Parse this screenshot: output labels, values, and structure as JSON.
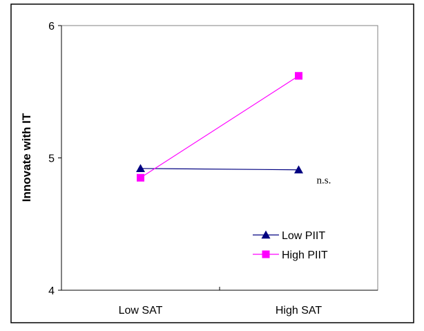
{
  "chart_data": {
    "type": "line",
    "title": "",
    "xlabel": "",
    "ylabel": "Innovate with IT",
    "categories": [
      "Low SAT",
      "High SAT"
    ],
    "ylim": [
      4,
      6
    ],
    "yticks": [
      "4",
      "5",
      "6"
    ],
    "grid": false,
    "legend_position": "bottom-right",
    "series": [
      {
        "name": "Low PIIT",
        "values": [
          4.92,
          4.91
        ],
        "marker": "triangle",
        "color": "#000080"
      },
      {
        "name": "High PIIT",
        "values": [
          4.85,
          5.62
        ],
        "marker": "square",
        "color": "#ff00ff"
      }
    ],
    "annotations": [
      {
        "text": "n.s.",
        "series": "Low PIIT"
      }
    ]
  }
}
